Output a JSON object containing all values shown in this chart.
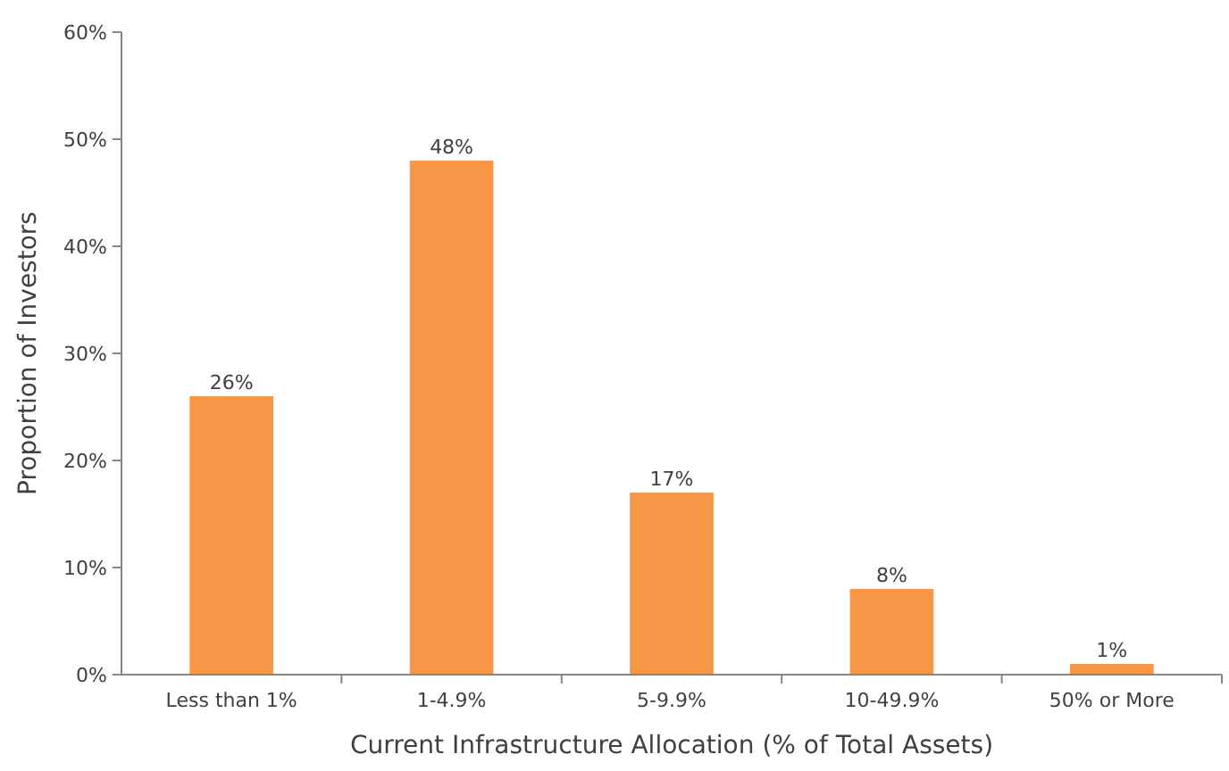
{
  "chart_data": {
    "type": "bar",
    "xlabel": "Current Infrastructure Allocation (% of Total Assets)",
    "ylabel": "Proportion of Investors",
    "categories": [
      "Less than 1%",
      "1-4.9%",
      "5-9.9%",
      "10-49.9%",
      "50% or More"
    ],
    "values": [
      26,
      48,
      17,
      8,
      1
    ],
    "value_labels": [
      "26%",
      "48%",
      "17%",
      "8%",
      "1%"
    ],
    "color": "#f79646",
    "ylim": [
      0,
      60
    ],
    "yticks": [
      {
        "value": 0,
        "label": "0%"
      },
      {
        "value": 10,
        "label": "10%"
      },
      {
        "value": 20,
        "label": "20%"
      },
      {
        "value": 30,
        "label": "30%"
      },
      {
        "value": 40,
        "label": "40%"
      },
      {
        "value": 50,
        "label": "50%"
      },
      {
        "value": 60,
        "label": "60%"
      }
    ],
    "grid": false
  }
}
